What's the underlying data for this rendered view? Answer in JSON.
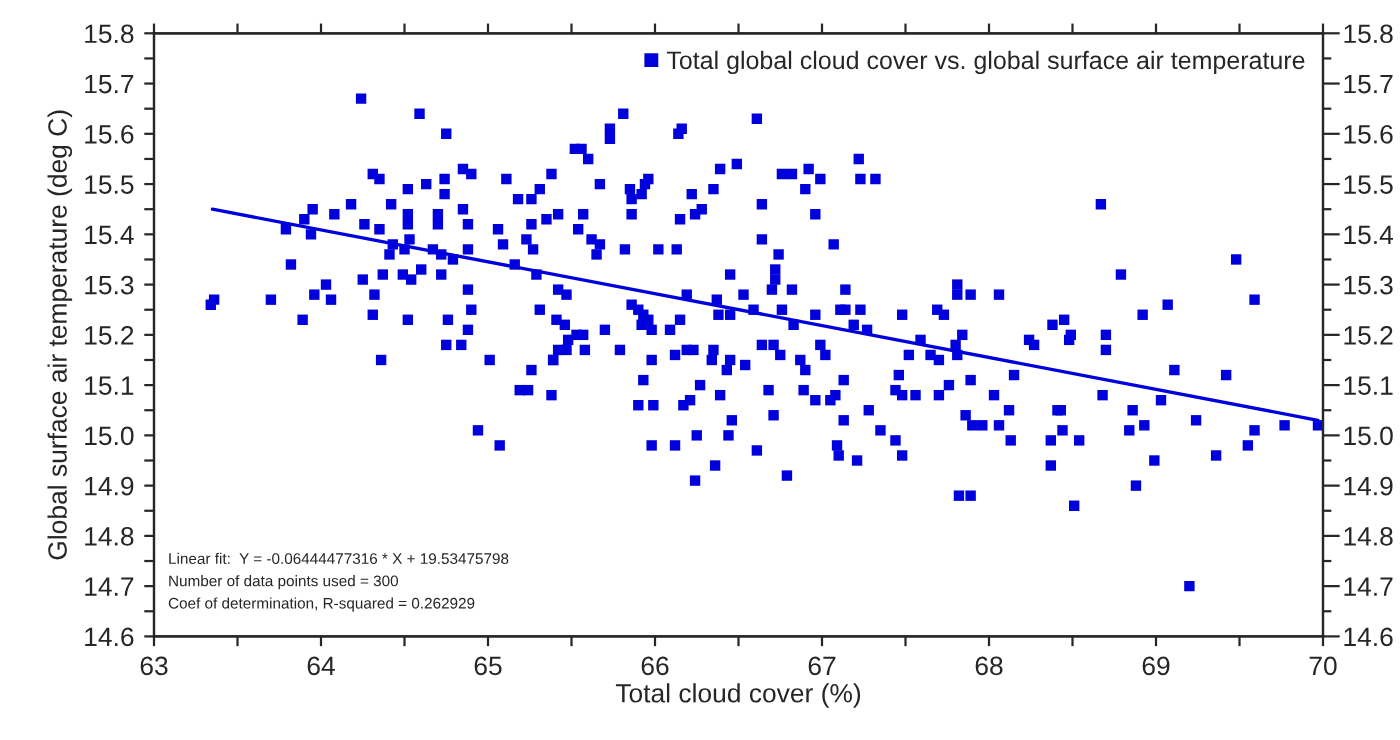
{
  "chart_data": {
    "type": "scatter",
    "xlabel": "Total cloud cover (%)",
    "ylabel": "Global surface air temperature (deg C)",
    "series": [
      {
        "name": "Total global cloud cover vs. global surface air temperature",
        "color": "#0000dd",
        "marker": "square",
        "x": [
          63.34,
          63.36,
          63.7,
          63.82,
          63.79,
          63.9,
          63.95,
          63.94,
          63.96,
          64.03,
          64.06,
          63.89,
          64.08,
          64.18,
          64.24,
          64.26,
          64.25,
          64.32,
          64.31,
          64.35,
          64.31,
          64.36,
          64.35,
          64.37,
          64.42,
          64.41,
          64.43,
          64.5,
          64.52,
          64.52,
          64.52,
          64.53,
          64.49,
          64.54,
          64.52,
          64.59,
          64.63,
          64.7,
          64.7,
          64.67,
          64.6,
          64.72,
          64.72,
          64.75,
          64.74,
          64.74,
          64.85,
          64.9,
          64.85,
          64.88,
          64.88,
          64.79,
          64.76,
          64.75,
          64.84,
          64.88,
          64.9,
          64.88,
          65.01,
          64.94,
          65.07,
          65.06,
          65.09,
          65.11,
          65.18,
          65.26,
          65.31,
          65.23,
          65.26,
          65.27,
          65.16,
          65.29,
          65.38,
          65.35,
          65.31,
          65.26,
          65.19,
          65.24,
          65.38,
          65.39,
          65.81,
          65.73,
          65.73,
          65.52,
          65.56,
          65.6,
          65.67,
          65.85,
          65.94,
          65.96,
          65.92,
          65.86,
          65.86,
          65.42,
          65.54,
          65.62,
          65.67,
          65.65,
          65.57,
          65.82,
          66.02,
          66.13,
          66.14,
          66.16,
          66.22,
          66.24,
          66.28,
          66.15,
          66.35,
          66.39,
          66.49,
          66.61,
          66.64,
          66.64,
          66.76,
          66.82,
          66.92,
          66.9,
          66.99,
          66.96,
          67.22,
          67.23,
          67.32,
          67.07,
          66.74,
          66.72,
          66.72,
          66.82,
          66.7,
          66.45,
          66.53,
          66.19,
          65.86,
          65.9,
          65.93,
          65.96,
          65.92,
          65.98,
          66.09,
          66.15,
          66.37,
          66.38,
          66.45,
          66.59,
          66.76,
          66.83,
          66.96,
          67.11,
          67.14,
          67.14,
          67.23,
          67.19,
          67.27,
          67.48,
          67.69,
          67.73,
          67.59,
          67.52,
          67.65,
          67.7,
          67.81,
          67.81,
          67.81,
          65.41,
          65.47,
          65.42,
          65.46,
          65.48,
          65.53,
          65.57,
          65.42,
          65.47,
          65.58,
          65.39,
          65.7,
          65.79,
          65.98,
          66.12,
          66.19,
          66.23,
          66.35,
          66.34,
          66.45,
          66.43,
          66.54,
          66.64,
          66.71,
          66.75,
          66.87,
          66.9,
          66.99,
          67.02,
          65.93,
          66.27,
          66.21,
          66.17,
          65.9,
          65.99,
          66.39,
          66.46,
          66.44,
          66.25,
          66.36,
          66.24,
          65.98,
          66.12,
          66.61,
          66.68,
          66.71,
          66.79,
          66.89,
          66.96,
          67.05,
          67.08,
          67.13,
          67.13,
          67.09,
          67.1,
          67.21,
          67.28,
          67.35,
          67.44,
          67.48,
          67.46,
          67.44,
          67.48,
          67.56,
          67.7,
          67.76,
          68.67,
          69.48,
          68.79,
          69.59,
          68.92,
          69.07,
          67.89,
          68.06,
          67.84,
          67.8,
          68.24,
          68.27,
          68.38,
          68.45,
          68.49,
          68.48,
          68.7,
          68.7,
          69.11,
          69.42,
          67.89,
          68.15,
          68.03,
          68.12,
          68.13,
          67.86,
          67.9,
          67.96,
          68.06,
          68.37,
          68.41,
          68.43,
          68.44,
          68.54,
          68.37,
          68.68,
          68.86,
          68.84,
          68.93,
          68.99,
          68.88,
          69.03,
          69.24,
          69.36,
          69.55,
          69.59,
          69.77,
          69.97,
          67.82,
          67.89,
          68.51,
          69.2
        ],
        "values": [
          15.26,
          15.27,
          15.27,
          15.34,
          15.41,
          15.43,
          15.45,
          15.4,
          15.28,
          15.3,
          15.27,
          15.23,
          15.44,
          15.46,
          15.67,
          15.42,
          15.31,
          15.28,
          15.52,
          15.51,
          15.24,
          15.15,
          15.41,
          15.32,
          15.46,
          15.36,
          15.38,
          15.37,
          15.49,
          15.44,
          15.42,
          15.39,
          15.32,
          15.31,
          15.23,
          15.64,
          15.5,
          15.44,
          15.42,
          15.37,
          15.33,
          15.32,
          15.36,
          15.6,
          15.51,
          15.48,
          15.53,
          15.52,
          15.45,
          15.42,
          15.37,
          15.35,
          15.23,
          15.18,
          15.18,
          15.29,
          15.25,
          15.21,
          15.15,
          15.01,
          14.98,
          15.41,
          15.38,
          15.51,
          15.47,
          15.47,
          15.49,
          15.39,
          15.42,
          15.37,
          15.34,
          15.32,
          15.52,
          15.43,
          15.25,
          15.13,
          15.09,
          15.09,
          15.08,
          15.15,
          15.64,
          15.61,
          15.59,
          15.57,
          15.57,
          15.55,
          15.5,
          15.49,
          15.5,
          15.51,
          15.48,
          15.47,
          15.44,
          15.44,
          15.41,
          15.39,
          15.38,
          15.36,
          15.44,
          15.37,
          15.37,
          15.37,
          15.6,
          15.61,
          15.48,
          15.44,
          15.45,
          15.43,
          15.49,
          15.53,
          15.54,
          15.63,
          15.46,
          15.39,
          15.52,
          15.52,
          15.53,
          15.49,
          15.51,
          15.44,
          15.55,
          15.51,
          15.51,
          15.38,
          15.36,
          15.33,
          15.31,
          15.29,
          15.29,
          15.32,
          15.28,
          15.28,
          15.26,
          15.25,
          15.24,
          15.23,
          15.22,
          15.21,
          15.21,
          15.23,
          15.27,
          15.24,
          15.24,
          15.25,
          15.25,
          15.22,
          15.24,
          15.25,
          15.25,
          15.29,
          15.25,
          15.22,
          15.21,
          15.24,
          15.25,
          15.24,
          15.19,
          15.16,
          15.16,
          15.15,
          15.16,
          15.3,
          15.28,
          15.23,
          15.28,
          15.29,
          15.22,
          15.19,
          15.2,
          15.2,
          15.17,
          15.17,
          15.17,
          15.15,
          15.21,
          15.17,
          15.15,
          15.16,
          15.17,
          15.17,
          15.17,
          15.15,
          15.15,
          15.13,
          15.14,
          15.18,
          15.18,
          15.16,
          15.15,
          15.13,
          15.18,
          15.16,
          15.11,
          15.1,
          15.07,
          15.06,
          15.06,
          15.06,
          15.08,
          15.03,
          15.0,
          15.0,
          14.94,
          14.91,
          14.98,
          14.98,
          14.97,
          15.09,
          15.04,
          14.92,
          15.09,
          15.07,
          15.07,
          15.08,
          15.11,
          15.03,
          14.98,
          14.96,
          14.95,
          15.05,
          15.01,
          14.99,
          14.96,
          15.12,
          15.09,
          15.08,
          15.08,
          15.08,
          15.1,
          15.46,
          15.35,
          15.32,
          15.27,
          15.24,
          15.26,
          15.28,
          15.28,
          15.2,
          15.18,
          15.19,
          15.18,
          15.22,
          15.23,
          15.2,
          15.19,
          15.2,
          15.17,
          15.13,
          15.12,
          15.11,
          15.12,
          15.08,
          15.05,
          14.99,
          15.04,
          15.02,
          15.02,
          15.02,
          14.99,
          15.05,
          15.05,
          15.01,
          14.99,
          14.94,
          15.08,
          15.05,
          15.01,
          15.02,
          14.95,
          14.9,
          15.07,
          15.03,
          14.96,
          14.98,
          15.01,
          15.02,
          15.02,
          14.88,
          14.88,
          14.86,
          14.7
        ]
      },
      {
        "type": "line",
        "color": "#0000dd",
        "line_style": "solid",
        "marker": "none",
        "x": [
          63.35,
          69.97
        ],
        "values": [
          15.45,
          15.03
        ]
      }
    ],
    "xlim": [
      63,
      70
    ],
    "xticks": [
      63,
      {
        "value": 63.5,
        "label": null
      },
      64,
      {
        "value": 64.5,
        "label": null
      },
      65,
      {
        "value": 65.5,
        "label": null
      },
      66,
      {
        "value": 66.5,
        "label": null
      },
      67,
      {
        "value": 67.5,
        "label": null
      },
      68,
      {
        "value": 68.5,
        "label": null
      },
      69,
      {
        "value": 69.5,
        "label": null
      },
      70
    ],
    "ylim": [
      14.6,
      15.8
    ],
    "yticks": [
      14.6,
      {
        "value": 14.65,
        "label": null
      },
      14.7,
      {
        "value": 14.75,
        "label": null
      },
      14.8,
      {
        "value": 14.85,
        "label": null
      },
      14.9,
      {
        "value": 14.95,
        "label": null
      },
      {
        "value": 15.0,
        "label": "15.0"
      },
      {
        "value": 15.05,
        "label": null
      },
      15.1,
      {
        "value": 15.15,
        "label": null
      },
      15.2,
      {
        "value": 15.25,
        "label": null
      },
      15.3,
      {
        "value": 15.35,
        "label": null
      },
      15.4,
      {
        "value": 15.45,
        "label": null
      },
      15.5,
      {
        "value": 15.55,
        "label": null
      },
      15.6,
      {
        "value": 15.65,
        "label": null
      },
      15.7,
      {
        "value": 15.75,
        "label": null
      },
      15.8
    ],
    "y2lim": [
      14.6,
      15.8
    ],
    "y2ticks": [
      14.6,
      {
        "value": 14.65,
        "label": null
      },
      14.7,
      {
        "value": 14.75,
        "label": null
      },
      14.8,
      {
        "value": 14.85,
        "label": null
      },
      14.9,
      {
        "value": 14.95,
        "label": null
      },
      {
        "value": 15.0,
        "label": "15.0"
      },
      {
        "value": 15.05,
        "label": null
      },
      15.1,
      {
        "value": 15.15,
        "label": null
      },
      15.2,
      {
        "value": 15.25,
        "label": null
      },
      15.3,
      {
        "value": 15.35,
        "label": null
      },
      15.4,
      {
        "value": 15.45,
        "label": null
      },
      15.5,
      {
        "value": 15.55,
        "label": null
      },
      15.6,
      {
        "value": 15.65,
        "label": null
      },
      15.7,
      {
        "value": 15.75,
        "label": null
      },
      15.8
    ],
    "grid": false,
    "legend": "top right",
    "annotations": [
      "Linear fit:  Y = -0.06444477316 * X + 19.53475798",
      "Number of data points used = 300",
      "Coef of determination, R-squared = 0.262929"
    ]
  }
}
